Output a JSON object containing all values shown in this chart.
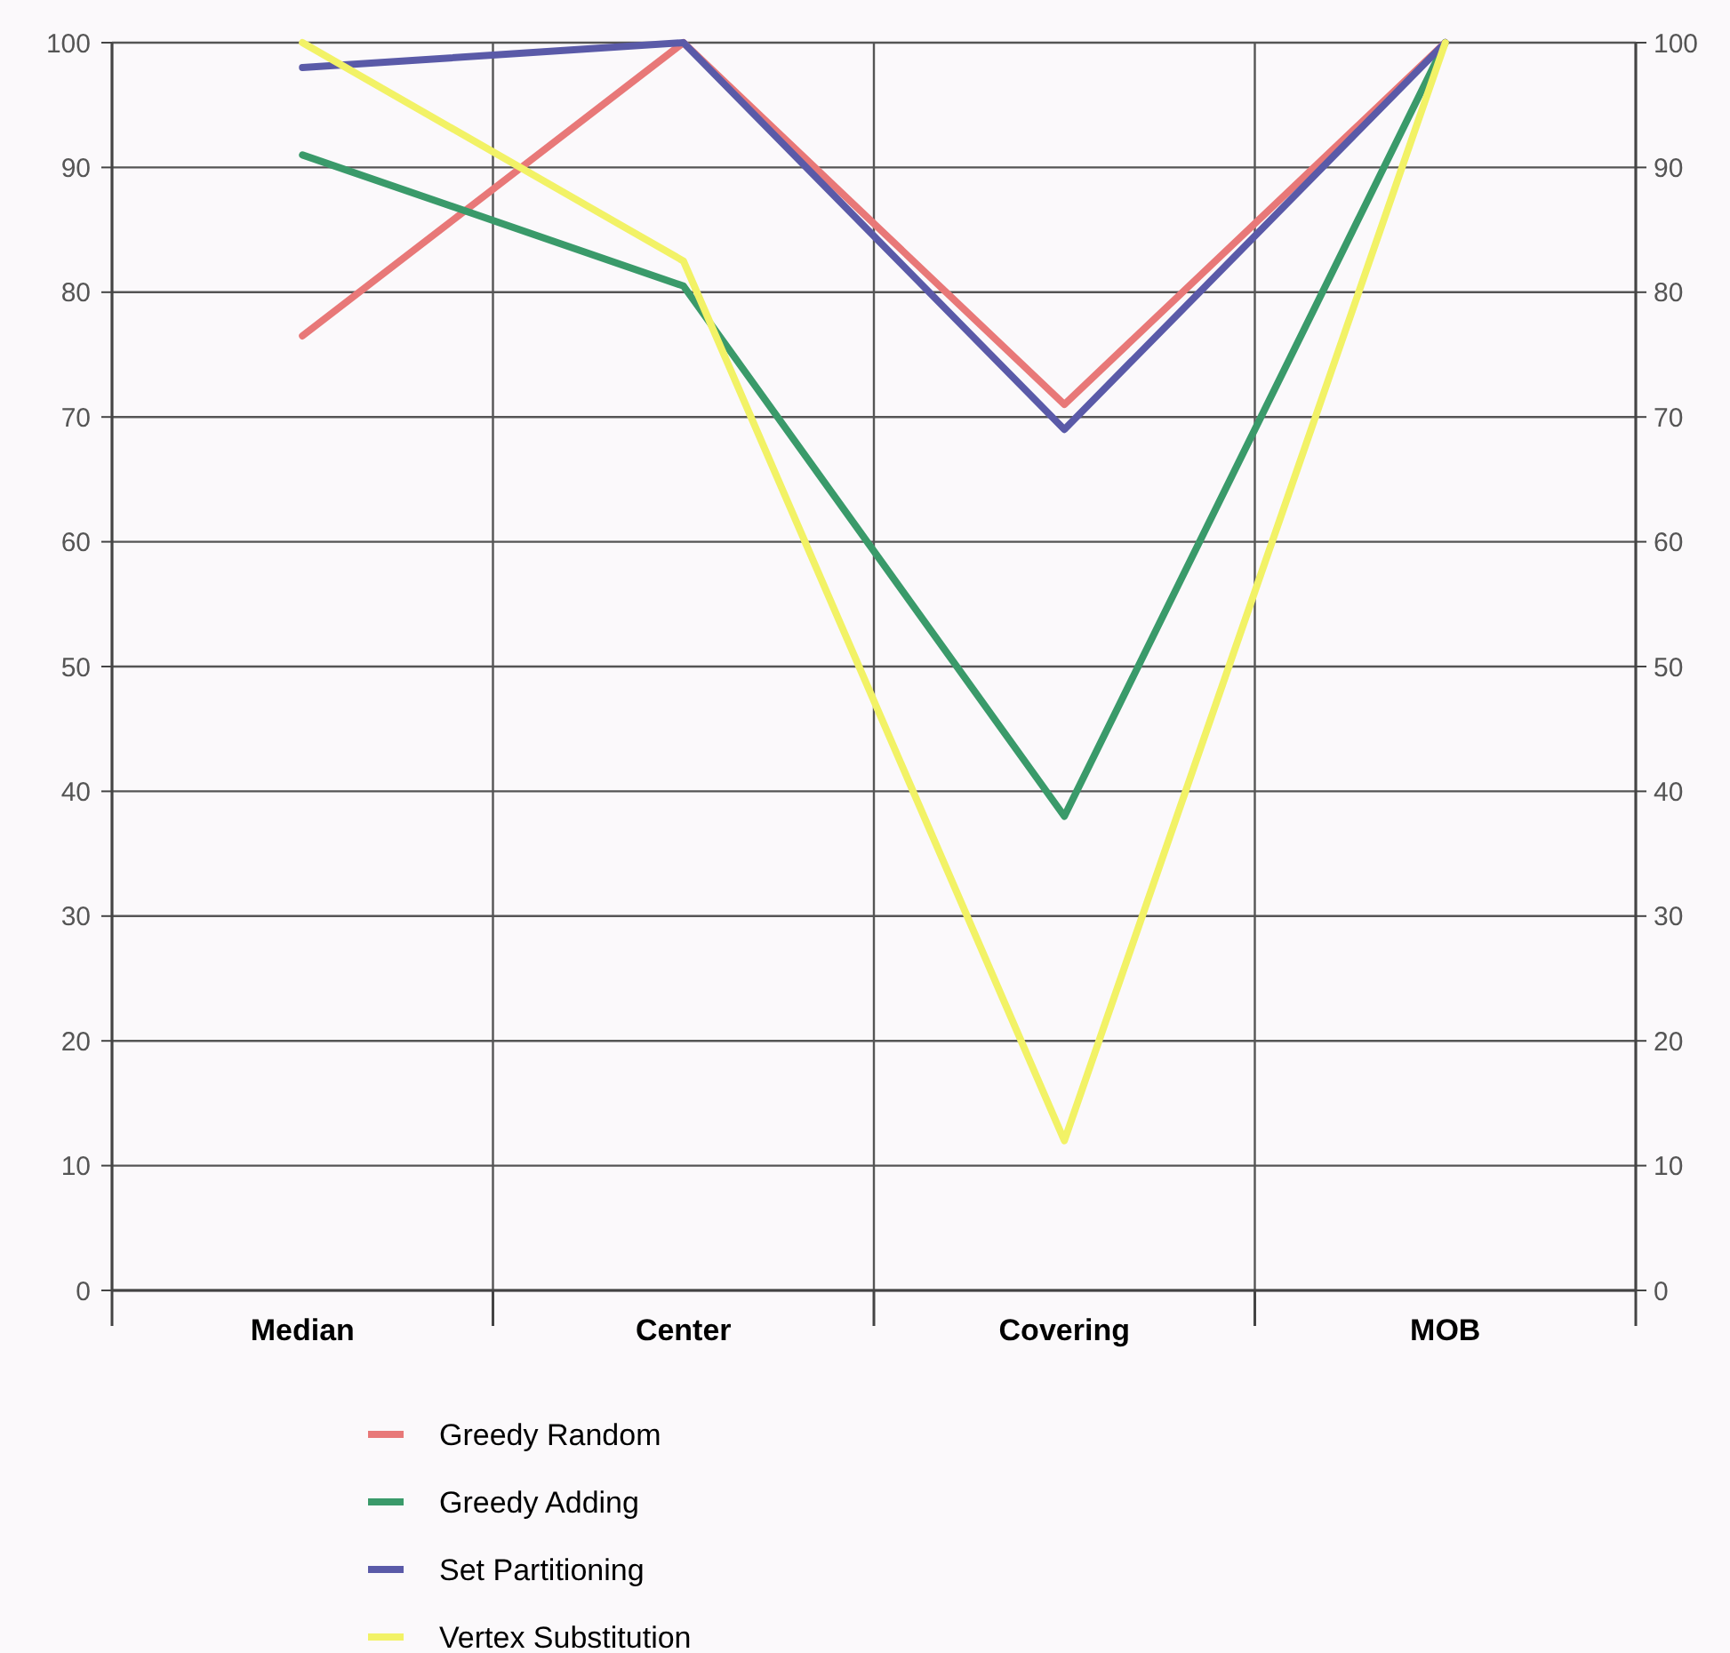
{
  "chart_data": {
    "type": "line",
    "categories": [
      "Median",
      "Center",
      "Covering",
      "MOB"
    ],
    "series": [
      {
        "name": "Greedy Random",
        "color": "#e87878",
        "values": [
          76.5,
          100,
          71,
          100
        ]
      },
      {
        "name": "Greedy Adding",
        "color": "#3a9a6a",
        "values": [
          91,
          80.5,
          38,
          100
        ]
      },
      {
        "name": "Set Partitioning",
        "color": "#5a5aa8",
        "values": [
          98,
          100,
          69,
          100
        ]
      },
      {
        "name": "Vertex Substitution",
        "color": "#f2f266",
        "values": [
          100,
          82.5,
          12,
          100
        ]
      }
    ],
    "ylim": [
      0,
      100
    ],
    "yticks": [
      0,
      10,
      20,
      30,
      40,
      50,
      60,
      70,
      80,
      90,
      100
    ],
    "y2lim": [
      0,
      100
    ],
    "y2ticks": [
      0,
      10,
      20,
      30,
      40,
      50,
      60,
      70,
      80,
      90,
      100
    ],
    "grid": true,
    "legend": "bottom",
    "marker": "none",
    "line_style": "solid"
  }
}
